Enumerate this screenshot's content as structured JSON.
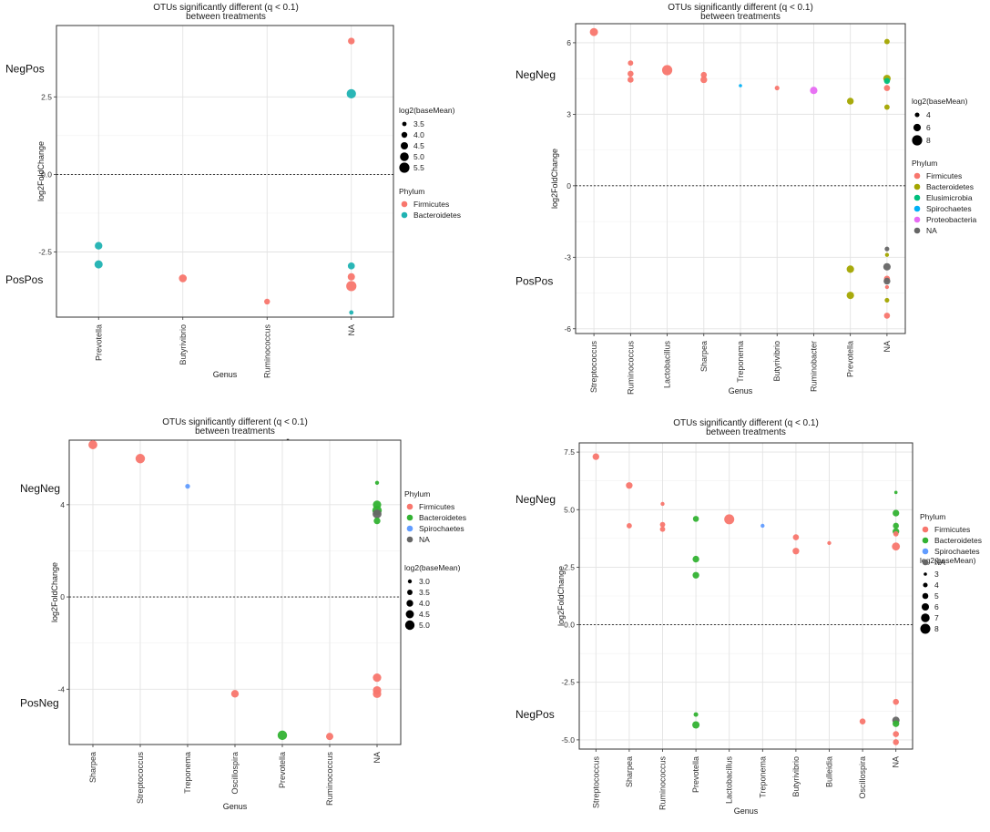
{
  "figure": {
    "panels": [
      {
        "title": "OTUs significantly different (q < 0.1)",
        "subtitle": "between treatments"
      },
      {
        "title": "OTUs significantly different (q < 0.1)",
        "subtitle": "between treatments"
      },
      {
        "title": "OTUs significantly different (q < 0.1)",
        "subtitle": "between treatments"
      },
      {
        "title": "OTUs significantly different (q < 0.1)",
        "subtitle": "between treatments"
      }
    ]
  },
  "chart_data": [
    {
      "type": "scatter",
      "title": "OTUs significantly different (q < 0.1)",
      "subtitle": "between treatments",
      "xlabel": "Genus",
      "ylabel": "log2FoldChange",
      "categories": [
        "Prevotella",
        "Butyrivibrio",
        "Ruminococcus",
        "NA"
      ],
      "ylim": [
        -4.6,
        4.8
      ],
      "yticks": [
        -2.5,
        0,
        2.5
      ],
      "ytick_labels": [
        "-2.5",
        "0.0",
        "2.5"
      ],
      "group_labels": [
        {
          "text": "NegPos",
          "y": 3.4
        },
        {
          "text": "PosPos",
          "y": -3.4
        }
      ],
      "phylum_colors": {
        "Firmicutes": "#F8766D",
        "Bacteroidetes": "#1FB2B2"
      },
      "size_legend": {
        "title": "log2(baseMean)",
        "values": [
          3.5,
          4.0,
          4.5,
          5.0,
          5.5
        ],
        "labels": [
          "3.5",
          "4.0",
          "4.5",
          "5.0",
          "5.5"
        ]
      },
      "color_legend": {
        "title": "Phylum",
        "items": [
          "Firmicutes",
          "Bacteroidetes"
        ]
      },
      "points": [
        {
          "genus": "Prevotella",
          "y": -2.3,
          "phylum": "Bacteroidetes",
          "base": 4.6
        },
        {
          "genus": "Prevotella",
          "y": -2.9,
          "phylum": "Bacteroidetes",
          "base": 4.8
        },
        {
          "genus": "Butyrivibrio",
          "y": -3.35,
          "phylum": "Firmicutes",
          "base": 4.7
        },
        {
          "genus": "Ruminococcus",
          "y": -4.1,
          "phylum": "Firmicutes",
          "base": 4.0
        },
        {
          "genus": "NA",
          "y": 4.3,
          "phylum": "Firmicutes",
          "base": 4.3
        },
        {
          "genus": "NA",
          "y": 2.6,
          "phylum": "Bacteroidetes",
          "base": 5.2
        },
        {
          "genus": "NA",
          "y": -2.95,
          "phylum": "Bacteroidetes",
          "base": 4.4
        },
        {
          "genus": "NA",
          "y": -3.3,
          "phylum": "Firmicutes",
          "base": 4.5
        },
        {
          "genus": "NA",
          "y": -3.6,
          "phylum": "Firmicutes",
          "base": 5.5
        },
        {
          "genus": "NA",
          "y": -4.45,
          "phylum": "Bacteroidetes",
          "base": 3.5
        }
      ]
    },
    {
      "type": "scatter",
      "title": "OTUs significantly different (q < 0.1)",
      "subtitle": "between treatments",
      "xlabel": "Genus",
      "ylabel": "log2FoldChange",
      "categories": [
        "Streptococcus",
        "Ruminococcus",
        "Lactobacillus",
        "Sharpea",
        "Treponema",
        "Butyrivibrio",
        "Ruminobacter",
        "Prevotella",
        "NA"
      ],
      "ylim": [
        -6.2,
        6.8
      ],
      "yticks": [
        -6,
        -3,
        0,
        3,
        6
      ],
      "ytick_labels": [
        "-6",
        "-3",
        "0",
        "3",
        "6"
      ],
      "group_labels": [
        {
          "text": "NegNeg",
          "y": 4.65
        },
        {
          "text": "PosPos",
          "y": -4.0
        }
      ],
      "phylum_colors": {
        "Firmicutes": "#F8766D",
        "Bacteroidetes": "#A3A500",
        "Elusimicrobia": "#00BF7D",
        "Spirochaetes": "#00B0F6",
        "Proteobacteria": "#E76BF3",
        "NA": "#666666"
      },
      "size_legend": {
        "title": "log2(baseMean)",
        "values": [
          4,
          6,
          8
        ],
        "labels": [
          "4",
          "6",
          "8"
        ]
      },
      "color_legend": {
        "title": "Phylum",
        "items": [
          "Firmicutes",
          "Bacteroidetes",
          "Elusimicrobia",
          "Spirochaetes",
          "Proteobacteria",
          "NA"
        ]
      },
      "points": [
        {
          "genus": "Streptococcus",
          "y": 6.45,
          "phylum": "Firmicutes",
          "base": 6.5
        },
        {
          "genus": "Ruminococcus",
          "y": 5.15,
          "phylum": "Firmicutes",
          "base": 4.5
        },
        {
          "genus": "Ruminococcus",
          "y": 4.7,
          "phylum": "Firmicutes",
          "base": 5.0
        },
        {
          "genus": "Ruminococcus",
          "y": 4.45,
          "phylum": "Firmicutes",
          "base": 5.0
        },
        {
          "genus": "Lactobacillus",
          "y": 4.85,
          "phylum": "Firmicutes",
          "base": 8.0
        },
        {
          "genus": "Sharpea",
          "y": 4.65,
          "phylum": "Firmicutes",
          "base": 5.0
        },
        {
          "genus": "Sharpea",
          "y": 4.45,
          "phylum": "Firmicutes",
          "base": 5.5
        },
        {
          "genus": "Treponema",
          "y": 4.2,
          "phylum": "Spirochaetes",
          "base": 3.0
        },
        {
          "genus": "Butyrivibrio",
          "y": 4.1,
          "phylum": "Firmicutes",
          "base": 4.0
        },
        {
          "genus": "Ruminobacter",
          "y": 4.0,
          "phylum": "Proteobacteria",
          "base": 6.0
        },
        {
          "genus": "Prevotella",
          "y": 3.55,
          "phylum": "Bacteroidetes",
          "base": 5.5
        },
        {
          "genus": "Prevotella",
          "y": -3.5,
          "phylum": "Bacteroidetes",
          "base": 6.0
        },
        {
          "genus": "Prevotella",
          "y": -4.6,
          "phylum": "Bacteroidetes",
          "base": 6.0
        },
        {
          "genus": "NA",
          "y": 6.05,
          "phylum": "Bacteroidetes",
          "base": 4.5
        },
        {
          "genus": "NA",
          "y": 4.5,
          "phylum": "Bacteroidetes",
          "base": 6.0
        },
        {
          "genus": "NA",
          "y": 4.4,
          "phylum": "Elusimicrobia",
          "base": 5.0
        },
        {
          "genus": "NA",
          "y": 4.1,
          "phylum": "Firmicutes",
          "base": 5.0
        },
        {
          "genus": "NA",
          "y": 3.3,
          "phylum": "Bacteroidetes",
          "base": 4.5
        },
        {
          "genus": "NA",
          "y": -2.65,
          "phylum": "NA",
          "base": 4.0
        },
        {
          "genus": "NA",
          "y": -2.9,
          "phylum": "Bacteroidetes",
          "base": 3.5
        },
        {
          "genus": "NA",
          "y": -3.4,
          "phylum": "NA",
          "base": 6.0
        },
        {
          "genus": "NA",
          "y": -3.9,
          "phylum": "Firmicutes",
          "base": 5.0
        },
        {
          "genus": "NA",
          "y": -4.0,
          "phylum": "NA",
          "base": 5.5
        },
        {
          "genus": "NA",
          "y": -4.25,
          "phylum": "Firmicutes",
          "base": 3.5
        },
        {
          "genus": "NA",
          "y": -4.8,
          "phylum": "Bacteroidetes",
          "base": 4.0
        },
        {
          "genus": "NA",
          "y": -5.45,
          "phylum": "Firmicutes",
          "base": 5.0
        }
      ]
    },
    {
      "type": "scatter",
      "title": "OTUs significantly different (q < 0.1)",
      "subtitle": "between treatments",
      "title_mark": "-",
      "xlabel": "Genus",
      "ylabel": "log2FoldChange",
      "categories": [
        "Sharpea",
        "Streptococcus",
        "Treponema",
        "Oscillospira",
        "Prevotella",
        "Ruminococcus",
        "NA"
      ],
      "ylim": [
        -6.4,
        6.8
      ],
      "yticks": [
        -4,
        0,
        4
      ],
      "ytick_labels": [
        "-4",
        "0",
        "4"
      ],
      "group_labels": [
        {
          "text": "NegNeg",
          "y": 4.7
        },
        {
          "text": "PosNeg",
          "y": -4.6
        }
      ],
      "phylum_colors": {
        "Firmicutes": "#F8766D",
        "Bacteroidetes": "#33B233",
        "Spirochaetes": "#619CFF",
        "NA": "#666666"
      },
      "size_legend": {
        "title": "log2(baseMean)",
        "values": [
          3.0,
          3.5,
          4.0,
          4.5,
          5.0
        ],
        "labels": [
          "3.0",
          "3.5",
          "4.0",
          "4.5",
          "5.0"
        ]
      },
      "color_legend": {
        "title": "Phylum",
        "items": [
          "Firmicutes",
          "Bacteroidetes",
          "Spirochaetes",
          "NA"
        ]
      },
      "points": [
        {
          "genus": "Sharpea",
          "y": 6.6,
          "phylum": "Firmicutes",
          "base": 4.8
        },
        {
          "genus": "Streptococcus",
          "y": 6.0,
          "phylum": "Firmicutes",
          "base": 5.0
        },
        {
          "genus": "Treponema",
          "y": 4.8,
          "phylum": "Spirochaetes",
          "base": 3.3
        },
        {
          "genus": "Oscillospira",
          "y": -4.2,
          "phylum": "Firmicutes",
          "base": 4.3
        },
        {
          "genus": "Prevotella",
          "y": -6.0,
          "phylum": "Bacteroidetes",
          "base": 5.0
        },
        {
          "genus": "Ruminococcus",
          "y": -6.05,
          "phylum": "Firmicutes",
          "base": 4.2
        },
        {
          "genus": "NA",
          "y": 4.95,
          "phylum": "Bacteroidetes",
          "base": 3.0
        },
        {
          "genus": "NA",
          "y": 4.0,
          "phylum": "Bacteroidetes",
          "base": 4.6
        },
        {
          "genus": "NA",
          "y": 3.75,
          "phylum": "Bacteroidetes",
          "base": 5.0
        },
        {
          "genus": "NA",
          "y": 3.6,
          "phylum": "NA",
          "base": 4.8
        },
        {
          "genus": "NA",
          "y": 3.3,
          "phylum": "Bacteroidetes",
          "base": 4.0
        },
        {
          "genus": "NA",
          "y": -3.5,
          "phylum": "Firmicutes",
          "base": 4.6
        },
        {
          "genus": "NA",
          "y": -4.05,
          "phylum": "Firmicutes",
          "base": 4.6
        },
        {
          "genus": "NA",
          "y": -4.2,
          "phylum": "Firmicutes",
          "base": 4.6
        }
      ]
    },
    {
      "type": "scatter",
      "title": "OTUs significantly different (q < 0.1)",
      "subtitle": "between treatments",
      "xlabel": "Genus",
      "ylabel": "log2FoldChange",
      "categories": [
        "Streptococcus",
        "Sharpea",
        "Ruminococcus",
        "Prevotella",
        "Lactobacillus",
        "Treponema",
        "Butyrivibrio",
        "Bulleidia",
        "Oscillospira",
        "NA"
      ],
      "ylim": [
        -5.4,
        7.9
      ],
      "yticks": [
        -5.0,
        -2.5,
        0.0,
        2.5,
        5.0,
        7.5
      ],
      "ytick_labels": [
        "-5.0",
        "-2.5",
        "0.0",
        "2.5",
        "5.0",
        "7.5"
      ],
      "group_labels": [
        {
          "text": "NegNeg",
          "y": 5.45
        },
        {
          "text": "NegPos",
          "y": -3.9
        }
      ],
      "phylum_colors": {
        "Firmicutes": "#F8766D",
        "Bacteroidetes": "#33B233",
        "Spirochaetes": "#619CFF",
        "NA": "#666666"
      },
      "size_legend": {
        "title": "log2(baseMean)",
        "values": [
          3,
          4,
          5,
          6,
          7,
          8
        ],
        "labels": [
          "3",
          "4",
          "5",
          "6",
          "7",
          "8"
        ]
      },
      "color_legend": {
        "title": "Phylum",
        "items": [
          "Firmicutes",
          "Bacteroidetes",
          "Spirochaetes",
          "NA"
        ]
      },
      "points": [
        {
          "genus": "Streptococcus",
          "y": 7.3,
          "phylum": "Firmicutes",
          "base": 5.5
        },
        {
          "genus": "Sharpea",
          "y": 6.05,
          "phylum": "Firmicutes",
          "base": 5.5
        },
        {
          "genus": "Sharpea",
          "y": 4.3,
          "phylum": "Firmicutes",
          "base": 4.5
        },
        {
          "genus": "Ruminococcus",
          "y": 5.25,
          "phylum": "Firmicutes",
          "base": 3.5
        },
        {
          "genus": "Ruminococcus",
          "y": 4.35,
          "phylum": "Firmicutes",
          "base": 4.5
        },
        {
          "genus": "Ruminococcus",
          "y": 4.15,
          "phylum": "Firmicutes",
          "base": 4.5
        },
        {
          "genus": "Prevotella",
          "y": 4.6,
          "phylum": "Bacteroidetes",
          "base": 5.0
        },
        {
          "genus": "Prevotella",
          "y": 2.85,
          "phylum": "Bacteroidetes",
          "base": 5.5
        },
        {
          "genus": "Prevotella",
          "y": 2.15,
          "phylum": "Bacteroidetes",
          "base": 5.5
        },
        {
          "genus": "Prevotella",
          "y": -3.9,
          "phylum": "Bacteroidetes",
          "base": 4.0
        },
        {
          "genus": "Prevotella",
          "y": -4.35,
          "phylum": "Bacteroidetes",
          "base": 6.0
        },
        {
          "genus": "Lactobacillus",
          "y": 4.58,
          "phylum": "Firmicutes",
          "base": 8.0
        },
        {
          "genus": "Treponema",
          "y": 4.3,
          "phylum": "Spirochaetes",
          "base": 3.5
        },
        {
          "genus": "Butyrivibrio",
          "y": 3.8,
          "phylum": "Firmicutes",
          "base": 5.0
        },
        {
          "genus": "Butyrivibrio",
          "y": 3.2,
          "phylum": "Firmicutes",
          "base": 5.5
        },
        {
          "genus": "Bulleidia",
          "y": 3.55,
          "phylum": "Firmicutes",
          "base": 3.5
        },
        {
          "genus": "Oscillospira",
          "y": -4.2,
          "phylum": "Firmicutes",
          "base": 5.0
        },
        {
          "genus": "NA",
          "y": 5.75,
          "phylum": "Bacteroidetes",
          "base": 3.0
        },
        {
          "genus": "NA",
          "y": 4.85,
          "phylum": "Bacteroidetes",
          "base": 5.5
        },
        {
          "genus": "NA",
          "y": 4.3,
          "phylum": "Bacteroidetes",
          "base": 5.0
        },
        {
          "genus": "NA",
          "y": 4.05,
          "phylum": "Bacteroidetes",
          "base": 5.5
        },
        {
          "genus": "NA",
          "y": 3.95,
          "phylum": "Firmicutes",
          "base": 4.5
        },
        {
          "genus": "NA",
          "y": 3.4,
          "phylum": "Firmicutes",
          "base": 6.5
        },
        {
          "genus": "NA",
          "y": -3.35,
          "phylum": "Firmicutes",
          "base": 5.0
        },
        {
          "genus": "NA",
          "y": -4.15,
          "phylum": "NA",
          "base": 6.0
        },
        {
          "genus": "NA",
          "y": -4.3,
          "phylum": "Bacteroidetes",
          "base": 5.5
        },
        {
          "genus": "NA",
          "y": -4.75,
          "phylum": "Firmicutes",
          "base": 5.0
        },
        {
          "genus": "NA",
          "y": -5.1,
          "phylum": "Firmicutes",
          "base": 5.0
        }
      ]
    }
  ]
}
